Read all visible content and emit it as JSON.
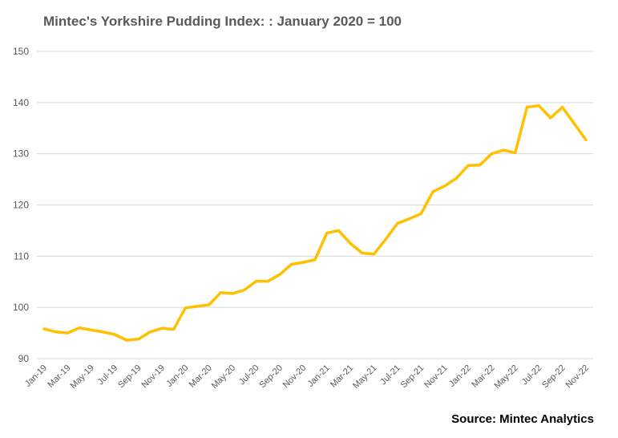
{
  "title": "Mintec's Yorkshire Pudding Index: : January 2020 = 100",
  "source": "Source: Mintec Analytics",
  "chart_data": {
    "type": "line",
    "title": "Mintec's Yorkshire Pudding Index: : January 2020 = 100",
    "xlabel": "",
    "ylabel": "",
    "ylim": [
      90,
      150
    ],
    "yticks": [
      90,
      100,
      110,
      120,
      130,
      140,
      150
    ],
    "grid": true,
    "line_color": "#FFC000",
    "tick_labels": [
      "Jan-19",
      "Mar-19",
      "May-19",
      "Jul-19",
      "Sep-19",
      "Nov-19",
      "Jan-20",
      "Mar-20",
      "May-20",
      "Jul-20",
      "Sep-20",
      "Nov-20",
      "Jan-21",
      "Mar-21",
      "May-21",
      "Jul-21",
      "Sep-21",
      "Nov-21",
      "Jan-22",
      "Mar-22",
      "May-22",
      "Jul-22",
      "Sep-22",
      "Nov-22"
    ],
    "x": [
      "Jan-19",
      "Feb-19",
      "Mar-19",
      "Apr-19",
      "May-19",
      "Jun-19",
      "Jul-19",
      "Aug-19",
      "Sep-19",
      "Oct-19",
      "Nov-19",
      "Dec-19",
      "Jan-20",
      "Feb-20",
      "Mar-20",
      "Apr-20",
      "May-20",
      "Jun-20",
      "Jul-20",
      "Aug-20",
      "Sep-20",
      "Oct-20",
      "Nov-20",
      "Dec-20",
      "Jan-21",
      "Feb-21",
      "Mar-21",
      "Apr-21",
      "May-21",
      "Jun-21",
      "Jul-21",
      "Aug-21",
      "Sep-21",
      "Oct-21",
      "Nov-21",
      "Dec-21",
      "Jan-22",
      "Feb-22",
      "Mar-22",
      "Apr-22",
      "May-22",
      "Jun-22",
      "Jul-22",
      "Aug-22",
      "Sep-22",
      "Oct-22",
      "Nov-22"
    ],
    "values": [
      95.8,
      95.2,
      95.0,
      96.0,
      95.6,
      95.2,
      94.7,
      93.6,
      93.8,
      95.2,
      95.9,
      95.7,
      99.9,
      100.2,
      100.5,
      102.9,
      102.7,
      103.4,
      105.1,
      105.1,
      106.4,
      108.4,
      108.8,
      109.3,
      114.5,
      115.0,
      112.5,
      110.6,
      110.4,
      113.3,
      116.4,
      117.3,
      118.3,
      122.6,
      123.7,
      125.2,
      127.7,
      127.8,
      130.0,
      130.7,
      130.2,
      139.1,
      139.4,
      137.0,
      139.1,
      135.9,
      132.7
    ]
  }
}
